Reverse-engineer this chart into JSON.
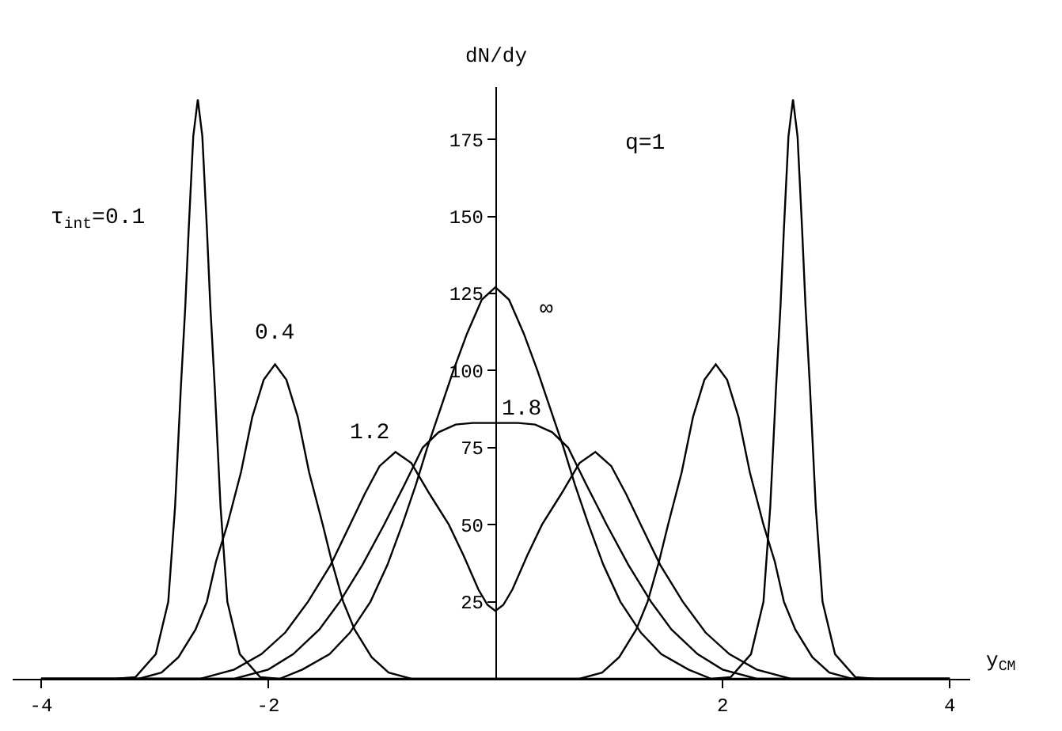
{
  "chart_data": {
    "type": "line",
    "xlabel": "y$_{CM}$",
    "ylabel": "dN/dy",
    "xlim": [
      -4.25,
      4.18
    ],
    "xticks": [
      -4,
      -2,
      2,
      4
    ],
    "ylim": [
      0,
      192
    ],
    "yticks": [
      25,
      50,
      75,
      100,
      125,
      150,
      175
    ],
    "grid": false,
    "legend": false,
    "marker": "none",
    "line_style": "solid",
    "series": [
      {
        "name": "τ$_{int}$=0.1",
        "color": "#000000",
        "x": [
          -4,
          -3.35,
          -3.17,
          -2.99,
          -2.88,
          -2.82,
          -2.77,
          -2.73,
          -2.7,
          -2.66,
          -2.62,
          -2.58,
          -2.54,
          -2.51,
          -2.47,
          -2.42,
          -2.36,
          -2.25,
          -2.07,
          -1.9,
          1.9,
          2.07,
          2.25,
          2.36,
          2.42,
          2.47,
          2.51,
          2.54,
          2.58,
          2.62,
          2.66,
          2.7,
          2.73,
          2.77,
          2.82,
          2.88,
          2.99,
          3.17,
          3.35,
          4
        ],
        "values": [
          0,
          0,
          0.5,
          8,
          25,
          56,
          94,
          121,
          146,
          176,
          188,
          176,
          146,
          121,
          94,
          56,
          25,
          8,
          0.5,
          0,
          0,
          0.5,
          8,
          25,
          56,
          94,
          121,
          146,
          176,
          188,
          176,
          146,
          121,
          94,
          56,
          25,
          8,
          0.5,
          0,
          0
        ]
      },
      {
        "name": "0.4",
        "color": "#000000",
        "x": [
          -4,
          -3.14,
          -2.94,
          -2.79,
          -2.64,
          -2.54,
          -2.46,
          -2.36,
          -2.24,
          -2.14,
          -2.04,
          -1.94,
          -1.84,
          -1.74,
          -1.64,
          -1.52,
          -1.44,
          -1.34,
          -1.24,
          -1.09,
          -0.94,
          -0.74,
          0.74,
          0.94,
          1.09,
          1.24,
          1.34,
          1.44,
          1.52,
          1.64,
          1.74,
          1.84,
          1.94,
          2.04,
          2.14,
          2.24,
          2.36,
          2.46,
          2.54,
          2.64,
          2.79,
          2.94,
          3.14,
          4
        ],
        "values": [
          0,
          0,
          2,
          7,
          16,
          25,
          38,
          50,
          67,
          85,
          97,
          102,
          97,
          85,
          67,
          50,
          38,
          25,
          16,
          7,
          2,
          0,
          0,
          2,
          7,
          16,
          25,
          38,
          50,
          67,
          85,
          97,
          102,
          97,
          85,
          67,
          50,
          38,
          25,
          16,
          7,
          2,
          0,
          0
        ]
      },
      {
        "name": "1.2",
        "color": "#000000",
        "x": [
          -4,
          -2.6,
          -2.3,
          -2.06,
          -1.85,
          -1.65,
          -1.45,
          -1.28,
          -1.15,
          -1.02,
          -0.88,
          -0.74,
          -0.58,
          -0.41,
          -0.28,
          -0.15,
          -0.07,
          0,
          0.07,
          0.15,
          0.28,
          0.41,
          0.58,
          0.74,
          0.88,
          1.02,
          1.15,
          1.28,
          1.45,
          1.65,
          1.85,
          2.06,
          2.3,
          2.6,
          4
        ],
        "values": [
          0,
          0,
          3,
          8,
          15,
          25,
          37,
          50,
          60,
          69,
          73.6,
          70,
          60,
          50,
          40,
          29,
          24,
          22,
          24,
          29,
          40,
          50,
          60,
          70,
          73.6,
          69,
          60,
          50,
          37,
          25,
          15,
          8,
          3,
          0,
          0
        ]
      },
      {
        "name": "1.8",
        "color": "#000000",
        "x": [
          -4,
          -2.3,
          -2.0,
          -1.78,
          -1.55,
          -1.37,
          -1.17,
          -0.98,
          -0.8,
          -0.64,
          -0.5,
          -0.35,
          -0.2,
          0,
          0.2,
          0.35,
          0.5,
          0.64,
          0.8,
          0.98,
          1.17,
          1.37,
          1.55,
          1.78,
          2.0,
          2.3,
          4
        ],
        "values": [
          0,
          0,
          3,
          8,
          16,
          25,
          37,
          50,
          63,
          75,
          80,
          82.5,
          83,
          83,
          83,
          82.5,
          80,
          75,
          63,
          50,
          37,
          25,
          16,
          8,
          3,
          0,
          0
        ]
      },
      {
        "name": "∞",
        "color": "#000000",
        "x": [
          -4,
          -1.9,
          -1.7,
          -1.46,
          -1.28,
          -1.1,
          -0.95,
          -0.82,
          -0.7,
          -0.6,
          -0.48,
          -0.37,
          -0.25,
          -0.12,
          0,
          0.12,
          0.25,
          0.37,
          0.48,
          0.6,
          0.7,
          0.82,
          0.95,
          1.1,
          1.28,
          1.46,
          1.7,
          1.9,
          4
        ],
        "values": [
          0,
          0,
          3,
          8,
          15,
          25,
          37,
          50,
          63,
          75,
          88,
          100,
          112,
          123,
          127,
          123,
          112,
          100,
          88,
          75,
          63,
          50,
          37,
          25,
          15,
          8,
          3,
          0,
          0
        ]
      }
    ],
    "annotations": [
      "q=1"
    ]
  }
}
